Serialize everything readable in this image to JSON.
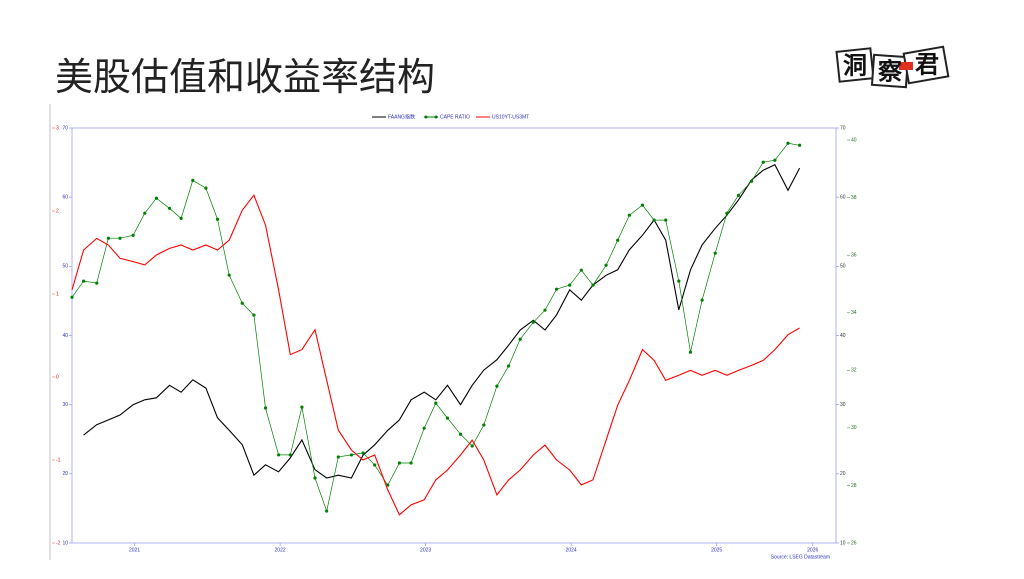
{
  "header": {
    "title": "美股估值和收益率结构",
    "logo": [
      "洞",
      "察",
      "君"
    ]
  },
  "chart_data": {
    "type": "line",
    "source": "Source: LSEG Datastream",
    "x": [
      2021.07,
      2021.15,
      2021.24,
      2021.32,
      2021.4,
      2021.49,
      2021.57,
      2021.65,
      2021.74,
      2021.82,
      2021.9,
      2021.99,
      2022.07,
      2022.15,
      2022.24,
      2022.32,
      2022.4,
      2022.49,
      2022.57,
      2022.65,
      2022.74,
      2022.82,
      2022.9,
      2022.99,
      2023.07,
      2023.15,
      2023.24,
      2023.32,
      2023.4,
      2023.49,
      2023.57,
      2023.65,
      2023.74,
      2023.82,
      2023.9,
      2023.99,
      2024.07,
      2024.15,
      2024.24,
      2024.32,
      2024.4,
      2024.49,
      2024.57,
      2024.65,
      2024.74,
      2024.82,
      2024.9,
      2024.99,
      2025.07,
      2025.15,
      2025.24,
      2025.32,
      2025.4,
      2025.49,
      2025.57,
      2025.65,
      2025.74,
      2025.82,
      2025.9,
      2025.99,
      2026.07
    ],
    "xlim": [
      2021.07,
      2026.32
    ],
    "xticks": [
      {
        "value": 2021.5,
        "label": "2021"
      },
      {
        "value": 2022.5,
        "label": "2022"
      },
      {
        "value": 2023.5,
        "label": "2023"
      },
      {
        "value": 2024.5,
        "label": "2024"
      },
      {
        "value": 2025.5,
        "label": "2025"
      },
      {
        "value": 2026.16,
        "label": "2026"
      }
    ],
    "ylim": [
      10,
      70
    ],
    "yticks": [
      10,
      20,
      30,
      40,
      50,
      60,
      70
    ],
    "y2lim": [
      -2,
      3
    ],
    "y2ticks": [
      -2,
      -1,
      0,
      1,
      2,
      3
    ],
    "y3lim": [
      26,
      40.42
    ],
    "y3ticks": [
      26,
      28,
      30,
      32,
      34,
      36,
      38,
      40
    ],
    "series": [
      {
        "name": "FAANG指数",
        "color": "#000000",
        "axis": "y",
        "markers": false,
        "values": [
          null,
          25.6,
          27.1,
          27.8,
          28.5,
          30.0,
          30.7,
          31.0,
          32.8,
          31.8,
          33.6,
          32.4,
          28.1,
          26.3,
          24.2,
          19.8,
          21.3,
          20.3,
          22.3,
          24.9,
          20.6,
          19.4,
          19.8,
          19.4,
          22.7,
          24.2,
          26.3,
          27.8,
          30.7,
          31.8,
          30.7,
          32.8,
          30.0,
          32.8,
          35.0,
          36.5,
          38.6,
          40.8,
          42.2,
          40.8,
          43.0,
          46.6,
          45.1,
          47.3,
          48.7,
          49.5,
          52.4,
          54.5,
          56.7,
          53.8,
          43.7,
          49.5,
          53.1,
          55.5,
          57.4,
          59.6,
          62.5,
          63.9,
          64.7,
          61.0,
          64.2
        ]
      },
      {
        "name": "CAPE RATIO",
        "color": "#008000",
        "axis": "y3",
        "markers": true,
        "values": [
          34.54,
          35.1,
          35.03,
          36.59,
          36.59,
          36.69,
          37.46,
          37.98,
          37.63,
          37.28,
          38.6,
          38.33,
          37.25,
          35.31,
          34.33,
          33.92,
          30.69,
          29.06,
          29.06,
          30.72,
          28.26,
          27.11,
          28.99,
          29.06,
          29.13,
          28.71,
          28.01,
          28.78,
          28.78,
          29.99,
          30.86,
          30.34,
          29.78,
          29.37,
          30.1,
          31.45,
          32.15,
          33.08,
          33.67,
          34.09,
          34.82,
          34.96,
          35.48,
          34.96,
          35.65,
          36.52,
          37.39,
          37.74,
          37.22,
          37.22,
          35.1,
          32.63,
          34.44,
          36.07,
          37.46,
          38.08,
          38.57,
          39.23,
          39.3,
          39.89,
          39.82
        ]
      },
      {
        "name": "US10YT-US3MT",
        "color": "#ff0000",
        "axis": "y2",
        "markers": false,
        "values": [
          1.05,
          1.53,
          1.67,
          1.59,
          1.43,
          1.39,
          1.35,
          1.47,
          1.55,
          1.59,
          1.53,
          1.59,
          1.53,
          1.65,
          2.01,
          2.19,
          1.83,
          1.05,
          0.27,
          0.33,
          0.57,
          -0.04,
          -0.64,
          -0.88,
          -1.0,
          -0.94,
          -1.36,
          -1.66,
          -1.54,
          -1.48,
          -1.24,
          -1.12,
          -0.94,
          -0.76,
          -1.0,
          -1.42,
          -1.24,
          -1.12,
          -0.94,
          -0.82,
          -1.0,
          -1.12,
          -1.3,
          -1.24,
          -0.76,
          -0.34,
          -0.04,
          0.33,
          0.2,
          -0.04,
          0.02,
          0.08,
          0.02,
          0.08,
          0.02,
          0.08,
          0.14,
          0.2,
          0.33,
          0.51,
          0.59
        ]
      }
    ]
  }
}
